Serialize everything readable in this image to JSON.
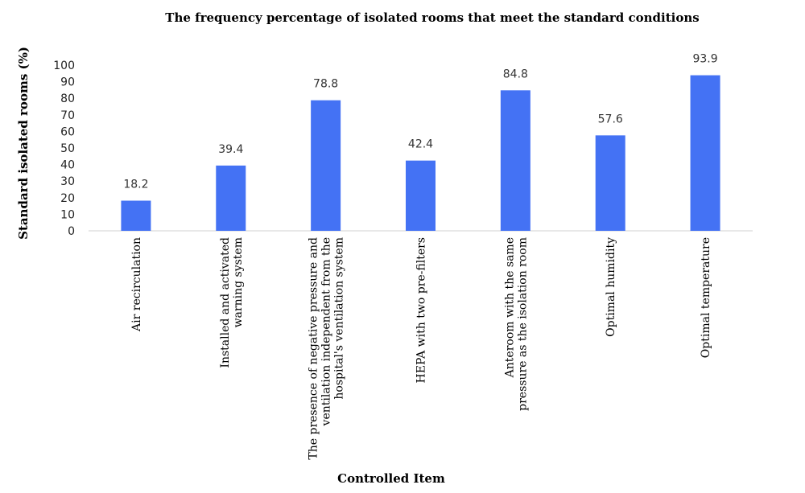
{
  "chart_data": {
    "type": "bar",
    "title": "The frequency percentage of isolated rooms that meet the standard conditions",
    "xlabel": "Controlled Item",
    "ylabel": "Standard isolated rooms (%)",
    "ylim": [
      0,
      100
    ],
    "yticks": [
      0,
      10,
      20,
      30,
      40,
      50,
      60,
      70,
      80,
      90,
      100
    ],
    "grid": false,
    "legend": "none",
    "bar_color": "#4472f4",
    "categories": [
      [
        "Air recirculation"
      ],
      [
        "Installed and activated",
        "warning system"
      ],
      [
        "The presence of negative pressure and",
        "ventilation independent from the",
        "hospital's ventilation system"
      ],
      [
        "HEPA with two pre-filters"
      ],
      [
        "Anteroom with the same",
        "pressure as the isolation room"
      ],
      [
        "Optimal humidity"
      ],
      [
        "Optimal temperature"
      ]
    ],
    "values": [
      18.2,
      39.4,
      78.8,
      42.4,
      84.8,
      57.6,
      93.9
    ],
    "data_labels": [
      "18.2",
      "39.4",
      "78.8",
      "42.4",
      "84.8",
      "57.6",
      "93.9"
    ]
  }
}
